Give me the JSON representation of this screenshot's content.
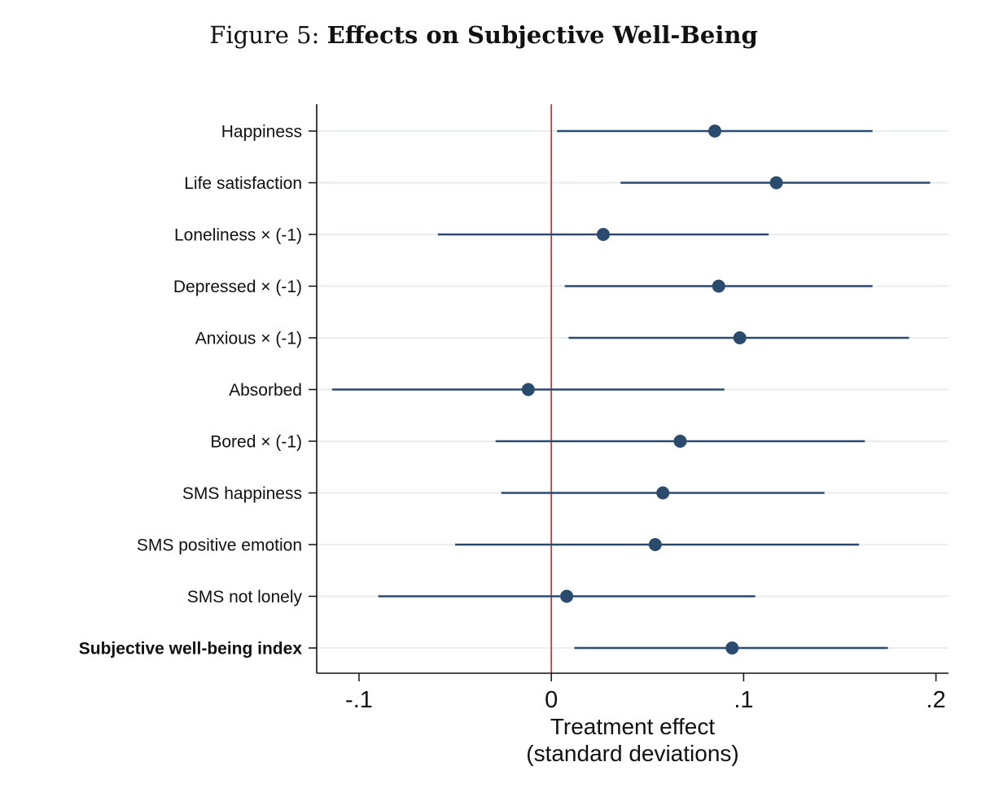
{
  "figure": {
    "prefix": "Figure 5:",
    "title": "Effects on Subjective Well-Being"
  },
  "colors": {
    "marker": "#2a4a6e",
    "ci_line": "#2a4a6e",
    "zero_line": "#c23b3b",
    "grid": "#e8eeee",
    "axis": "#111111"
  },
  "chart_data": {
    "type": "scatter",
    "orientation": "horizontal",
    "xlabel_lines": [
      "Treatment effect",
      "(standard deviations)"
    ],
    "ylabel": "",
    "xlim": [
      -0.122,
      0.2065
    ],
    "xticks": [
      -0.1,
      0,
      0.1,
      0.2
    ],
    "xtick_labels": [
      "-.1",
      "0",
      ".1",
      ".2"
    ],
    "reference_line_x": 0,
    "grid": true,
    "categories": [
      "Happiness",
      "Life satisfaction",
      "Loneliness × (-1)",
      "Depressed × (-1)",
      "Anxious × (-1)",
      "Absorbed",
      "Bored × (-1)",
      "SMS happiness",
      "SMS positive emotion",
      "SMS not lonely",
      "Subjective well-being index"
    ],
    "bold_categories": [
      "Subjective well-being index"
    ],
    "estimates": [
      0.085,
      0.117,
      0.027,
      0.087,
      0.098,
      -0.012,
      0.067,
      0.058,
      0.054,
      0.008,
      0.094
    ],
    "ci_low": [
      0.003,
      0.036,
      -0.059,
      0.007,
      0.009,
      -0.114,
      -0.029,
      -0.026,
      -0.05,
      -0.09,
      0.012
    ],
    "ci_high": [
      0.167,
      0.197,
      0.113,
      0.167,
      0.186,
      0.09,
      0.163,
      0.142,
      0.16,
      0.106,
      0.175
    ]
  }
}
